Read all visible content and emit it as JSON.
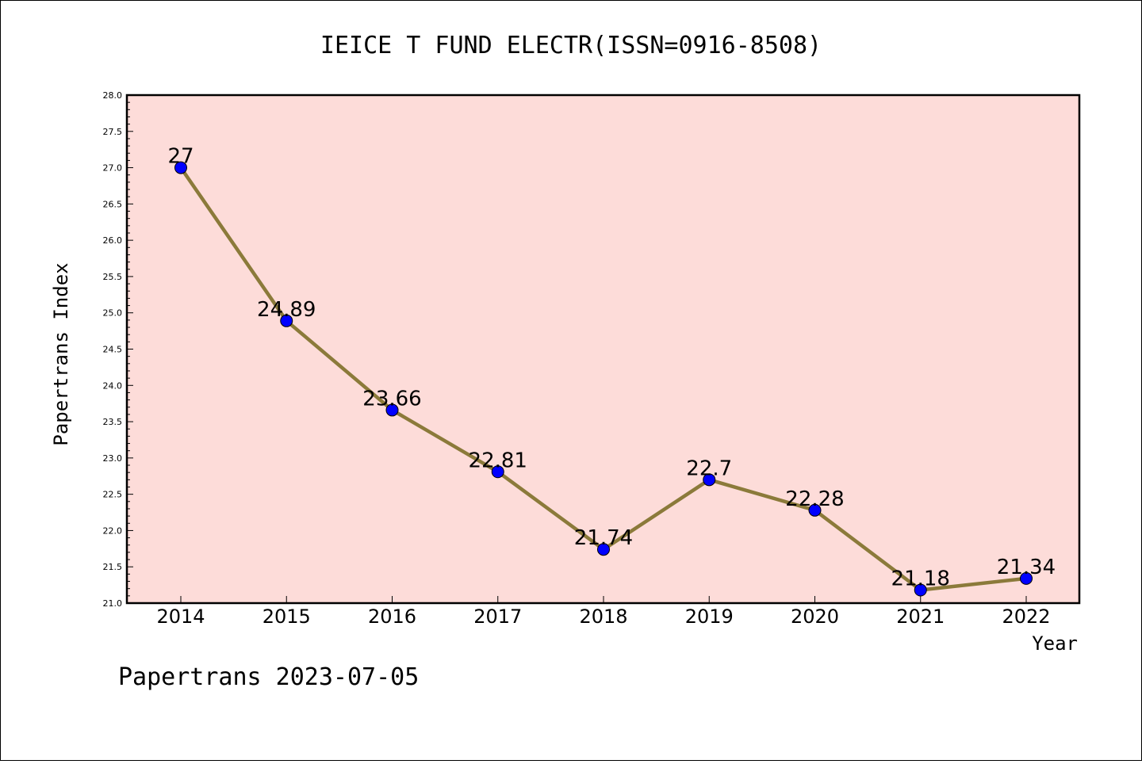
{
  "chart_data": {
    "type": "line",
    "title": "IEICE T FUND ELECTR(ISSN=0916-8508)",
    "xlabel": "Year",
    "ylabel": "Papertrans Index",
    "categories": [
      "2014",
      "2015",
      "2016",
      "2017",
      "2018",
      "2019",
      "2020",
      "2021",
      "2022"
    ],
    "series": [
      {
        "values": [
          27,
          24.89,
          23.66,
          22.81,
          21.74,
          22.7,
          22.28,
          21.18,
          21.34
        ],
        "data_labels": [
          "27",
          "24.89",
          "23.66",
          "22.81",
          "21.74",
          "22.7",
          "22.28",
          "21.18",
          "21.34"
        ],
        "line_color": "#8b7a3a",
        "marker_color": "#0000ff"
      }
    ],
    "ylim": [
      21.0,
      28.0
    ],
    "yticks": [
      "21.0",
      "21.5",
      "22.0",
      "22.5",
      "23.0",
      "23.5",
      "24.0",
      "24.5",
      "25.0",
      "25.5",
      "26.0",
      "26.5",
      "27.0",
      "27.5",
      "28.0"
    ],
    "plot_background": "#fddcd9",
    "grid": false,
    "legend": "none"
  },
  "footer": {
    "text": "Papertrans 2023-07-05"
  }
}
